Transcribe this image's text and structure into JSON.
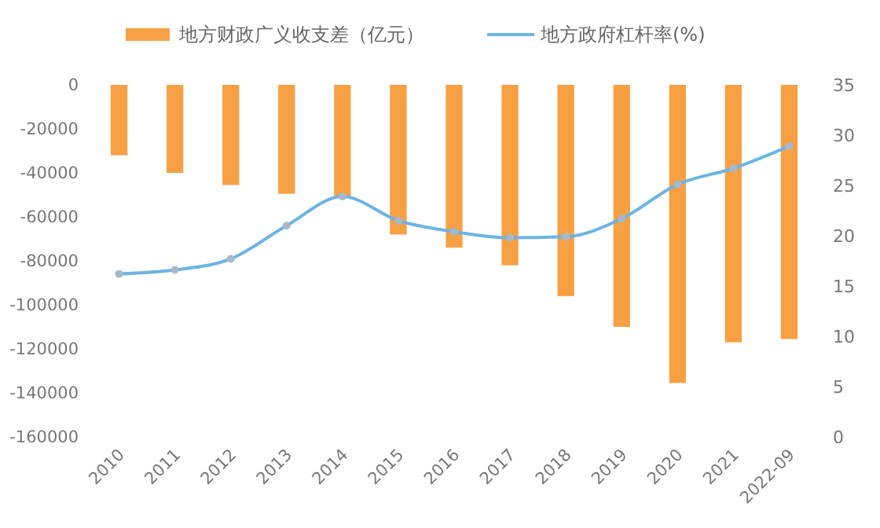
{
  "chart_data": {
    "type": "bar",
    "categories": [
      "2010",
      "2011",
      "2012",
      "2013",
      "2014",
      "2015",
      "2016",
      "2017",
      "2018",
      "2019",
      "2020",
      "2021",
      "2022-09"
    ],
    "series": [
      {
        "name": "地方财政广义收支差（亿元）",
        "color": "#f7a043",
        "values": [
          -32000,
          -40000,
          -45500,
          -49500,
          -51000,
          -68000,
          -74000,
          -82000,
          -96000,
          -110000,
          -135500,
          -117000,
          -115500
        ]
      },
      {
        "name": "地方政府杠杆率(%)",
        "type": "line",
        "axis": "y2",
        "color": "#6cb4e4",
        "marker": "circle",
        "values": [
          16.2,
          16.6,
          17.7,
          21,
          23.9,
          21.5,
          20.4,
          19.8,
          19.9,
          21.7,
          25.1,
          26.7,
          28.9
        ]
      }
    ],
    "ylim": [
      -160000,
      0
    ],
    "yticks": [
      -160000,
      -140000,
      -120000,
      -100000,
      -80000,
      -60000,
      -40000,
      -20000,
      0
    ],
    "y2lim": [
      0,
      35
    ],
    "y2ticks": [
      0,
      5,
      10,
      15,
      20,
      25,
      30,
      35
    ],
    "legend": "top",
    "grid": false
  }
}
